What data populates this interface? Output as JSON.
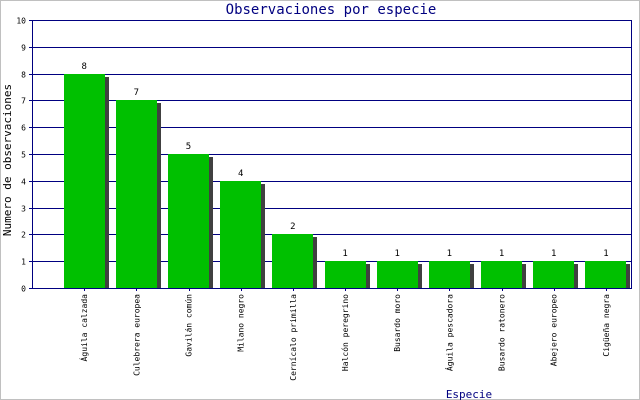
{
  "chart_data": {
    "type": "bar",
    "title": "Observaciones por especie",
    "xlabel": "Especie",
    "ylabel": "Numero de observaciones",
    "categories": [
      "Águila calzada",
      "Culebrera europea",
      "Gavilán común",
      "Milano negro",
      "Cernícalo primilla",
      "Halcón peregrino",
      "Busardo moro",
      "Águila pescadora",
      "Busardo ratonero",
      "Abejero europeo",
      "Cigüeña negra"
    ],
    "values": [
      8,
      7,
      5,
      4,
      2,
      1,
      1,
      1,
      1,
      1,
      1
    ],
    "ylim": [
      0,
      10
    ],
    "yticks": [
      "0",
      "1",
      "2",
      "3",
      "4",
      "5",
      "6",
      "7",
      "8",
      "9",
      "10"
    ],
    "grid": true,
    "legend": "none",
    "colors": {
      "bar": "#00c000",
      "bar_shadow": "#404040",
      "grid": "#000080",
      "axes": "#000080",
      "title": "#000080"
    }
  }
}
